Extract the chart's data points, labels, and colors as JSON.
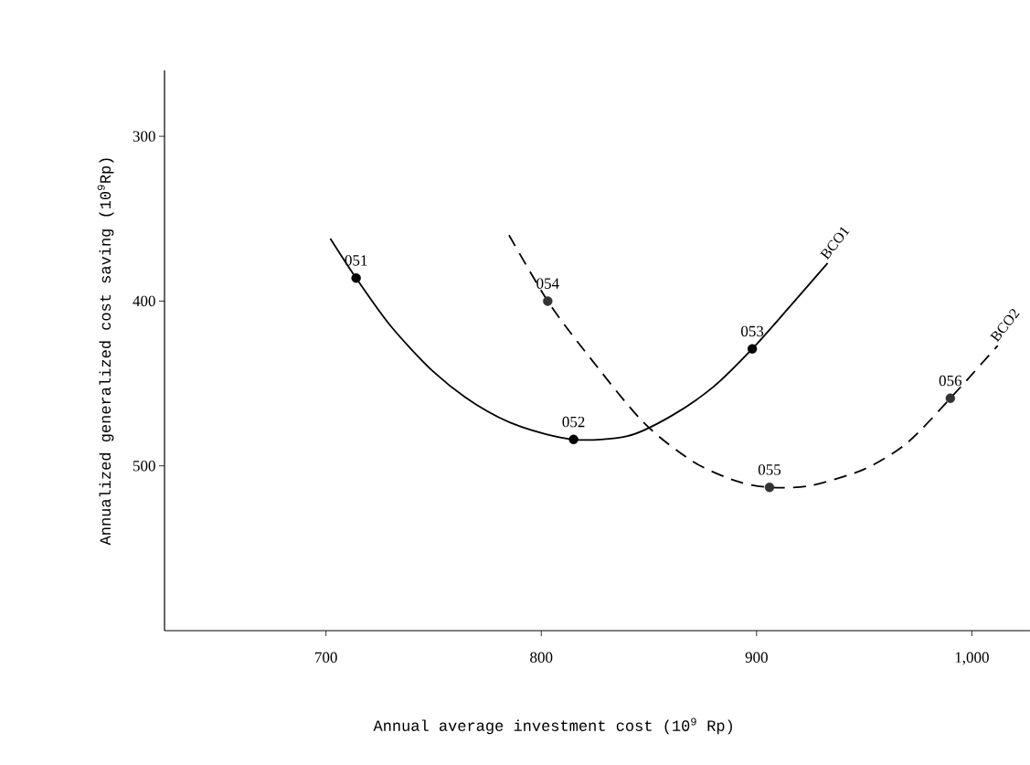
{
  "chart_data": {
    "type": "line",
    "xlabel": "Annual average investment cost (10$^{9}$ Rp)",
    "ylabel": "Annualized generalized cost saving (10$^{9}$Rp)",
    "xlim": [
      625,
      1027
    ],
    "ylim": [
      600,
      260
    ],
    "xticks": [
      700,
      800,
      900,
      {
        "value": 1000,
        "label": "1,000"
      }
    ],
    "yticks": [
      300,
      400,
      500
    ],
    "grid": false,
    "series": [
      {
        "name": "BCO1",
        "color": "#000000",
        "line_style": "solid",
        "marker": "none",
        "x": [
          702,
          714,
          730,
          750,
          770,
          790,
          815,
          840,
          860,
          880,
          898,
          915,
          933
        ],
        "values": [
          362,
          386,
          415,
          443,
          463,
          476,
          484,
          482,
          470,
          452,
          429,
          404,
          377
        ]
      },
      {
        "name": "BCO2",
        "color": "#000000",
        "line_style": "dashed",
        "marker": "none",
        "x": [
          785,
          803,
          820,
          847,
          870,
          890,
          906,
          925,
          950,
          970,
          990,
          1012
        ],
        "values": [
          360,
          400,
          430,
          473,
          497,
          509,
          513,
          512,
          502,
          486,
          459,
          427
        ]
      },
      {
        "type": "scatter",
        "color": "#000000",
        "marker": "circle",
        "x": [
          714,
          815,
          898
        ],
        "values": [
          386,
          484,
          429
        ]
      },
      {
        "type": "scatter",
        "color": "#333333",
        "marker": "circle",
        "x": [
          803,
          906,
          990
        ],
        "values": [
          400,
          513,
          459
        ]
      }
    ],
    "annotations": [
      {
        "text": "051",
        "x": 714,
        "y": 386
      },
      {
        "text": "052",
        "x": 815,
        "y": 484
      },
      {
        "text": "053",
        "x": 898,
        "y": 429
      },
      {
        "text": "054",
        "x": 803,
        "y": 400
      },
      {
        "text": "055",
        "x": 906,
        "y": 513
      },
      {
        "text": "056",
        "x": 990,
        "y": 459
      }
    ]
  }
}
